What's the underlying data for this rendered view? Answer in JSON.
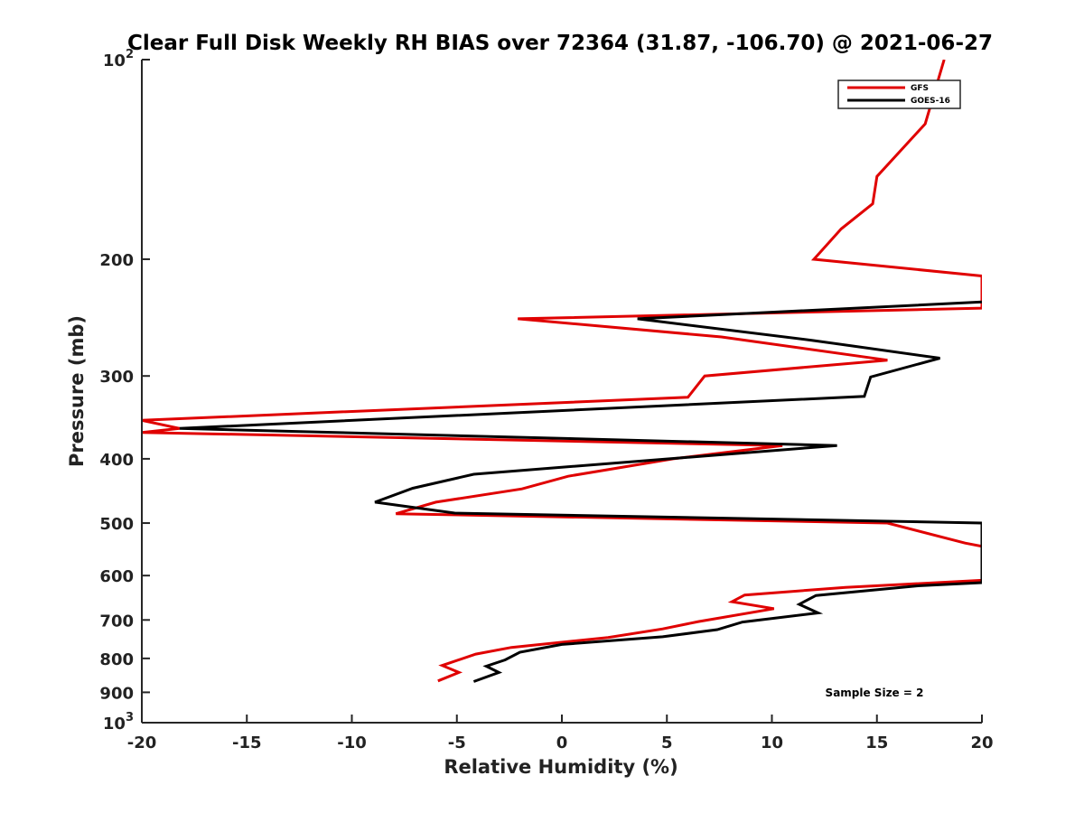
{
  "chart_data": {
    "type": "line",
    "title": "Clear Full Disk Weekly RH BIAS over 72364 (31.87, -106.70) @ 2021-06-27",
    "xlabel": "Relative Humidity (%)",
    "ylabel": "Pressure (mb)",
    "xlim": [
      -20,
      20
    ],
    "ylim": [
      100,
      1000
    ],
    "y_scale": "log",
    "y_reversed": true,
    "x_ticks": [
      "-20",
      "-15",
      "-10",
      "-5",
      "0",
      "5",
      "10",
      "15",
      "20"
    ],
    "y_ticks": [
      {
        "value": 100,
        "label": "10",
        "sup": "2"
      },
      {
        "value": 200,
        "label": "200"
      },
      {
        "value": 300,
        "label": "300"
      },
      {
        "value": 400,
        "label": "400"
      },
      {
        "value": 500,
        "label": "500"
      },
      {
        "value": 600,
        "label": "600"
      },
      {
        "value": 700,
        "label": "700"
      },
      {
        "value": 800,
        "label": "800"
      },
      {
        "value": 900,
        "label": "900"
      },
      {
        "value": 1000,
        "label": "10",
        "sup": "3"
      }
    ],
    "legend_position": "top-right",
    "series": [
      {
        "name": "GFS",
        "color": "#e00000",
        "points": [
          [
            18.2,
            100
          ],
          [
            17.3,
            125
          ],
          [
            15.0,
            150
          ],
          [
            14.8,
            165
          ],
          [
            13.3,
            180
          ],
          [
            12.0,
            200
          ],
          [
            20.0,
            212
          ],
          [
            20.0,
            237
          ],
          [
            -2.1,
            246
          ],
          [
            7.6,
            262
          ],
          [
            15.5,
            284
          ],
          [
            6.8,
            300
          ],
          [
            6.0,
            323
          ],
          [
            -20.0,
            350
          ],
          [
            -18.2,
            360
          ],
          [
            -20.0,
            365
          ],
          [
            10.5,
            382
          ],
          [
            5.3,
            400
          ],
          [
            0.3,
            425
          ],
          [
            -1.9,
            444
          ],
          [
            -6.0,
            465
          ],
          [
            -7.9,
            484
          ],
          [
            15.5,
            500
          ],
          [
            19.2,
            536
          ],
          [
            20.0,
            542
          ],
          [
            20.0,
            610
          ],
          [
            13.5,
            625
          ],
          [
            8.7,
            642
          ],
          [
            8.1,
            657
          ],
          [
            10.1,
            673
          ],
          [
            6.5,
            704
          ],
          [
            4.8,
            722
          ],
          [
            2.2,
            744
          ],
          [
            -2.4,
            770
          ],
          [
            -4.1,
            788
          ],
          [
            -5.7,
            820
          ],
          [
            -4.9,
            840
          ],
          [
            -5.9,
            865
          ]
        ]
      },
      {
        "name": "GOES-16",
        "color": "#000000",
        "points": [
          [
            20.0,
            232
          ],
          [
            3.6,
            246
          ],
          [
            11.9,
            265
          ],
          [
            18.0,
            282
          ],
          [
            14.7,
            301
          ],
          [
            14.4,
            322
          ],
          [
            -18.2,
            360
          ],
          [
            13.1,
            382
          ],
          [
            -4.2,
            422
          ],
          [
            -7.1,
            443
          ],
          [
            -8.9,
            465
          ],
          [
            -5.1,
            483
          ],
          [
            20.0,
            500
          ],
          [
            20.0,
            615
          ],
          [
            16.9,
            622
          ],
          [
            12.1,
            643
          ],
          [
            11.3,
            663
          ],
          [
            12.2,
            683
          ],
          [
            8.6,
            705
          ],
          [
            7.4,
            724
          ],
          [
            4.8,
            742
          ],
          [
            0.0,
            762
          ],
          [
            -2.0,
            783
          ],
          [
            -2.7,
            804
          ],
          [
            -3.6,
            822
          ],
          [
            -3.0,
            840
          ],
          [
            -4.2,
            867
          ]
        ]
      }
    ],
    "annotation": "Sample Size = 2"
  }
}
